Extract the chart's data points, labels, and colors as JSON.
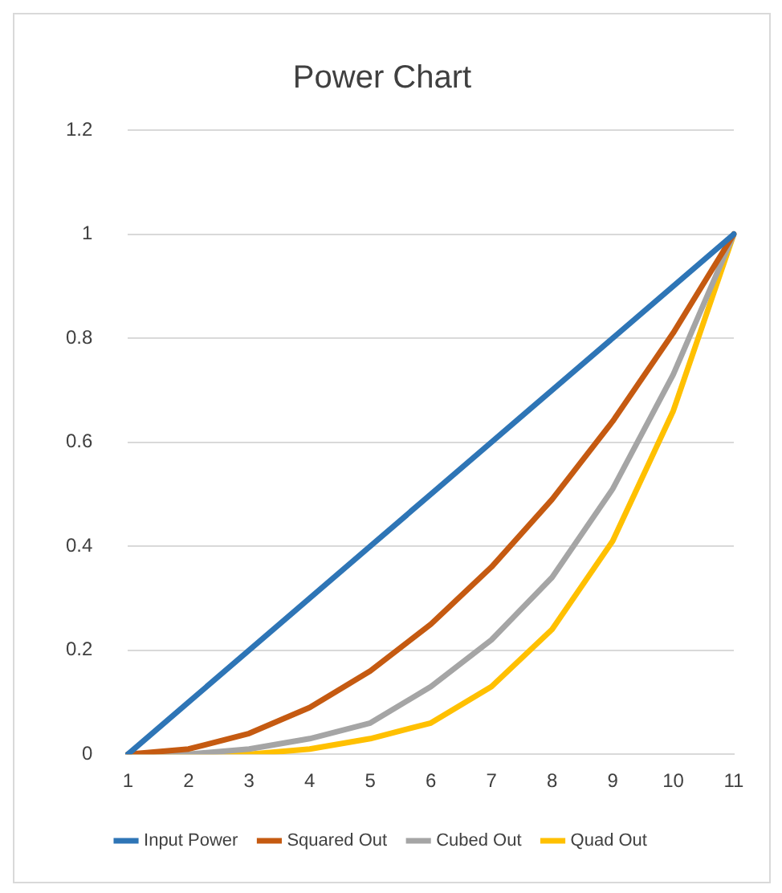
{
  "chart_data": {
    "type": "line",
    "title": "Power Chart",
    "categories": [
      "1",
      "2",
      "3",
      "4",
      "5",
      "6",
      "7",
      "8",
      "9",
      "10",
      "11"
    ],
    "series": [
      {
        "name": "Input Power",
        "color": "#2e75b6",
        "values": [
          0,
          0.1,
          0.2,
          0.3,
          0.4,
          0.5,
          0.6,
          0.7,
          0.8,
          0.9,
          1
        ]
      },
      {
        "name": "Squared Out",
        "color": "#c55a11",
        "values": [
          0,
          0.01,
          0.04,
          0.09,
          0.16,
          0.25,
          0.36,
          0.49,
          0.64,
          0.81,
          1
        ]
      },
      {
        "name": "Cubed Out",
        "color": "#a5a5a5",
        "values": [
          0,
          0,
          0.01,
          0.03,
          0.06,
          0.13,
          0.22,
          0.34,
          0.51,
          0.73,
          1
        ]
      },
      {
        "name": "Quad Out",
        "color": "#ffc000",
        "values": [
          0,
          0,
          0,
          0.01,
          0.03,
          0.06,
          0.13,
          0.24,
          0.41,
          0.66,
          1
        ]
      }
    ],
    "ylim": [
      0,
      1.2
    ],
    "yticks": [
      0,
      0.2,
      0.4,
      0.6,
      0.8,
      1,
      1.2
    ],
    "grid": "y",
    "legend": "bottom",
    "marker": "none",
    "line_style": "solid"
  }
}
